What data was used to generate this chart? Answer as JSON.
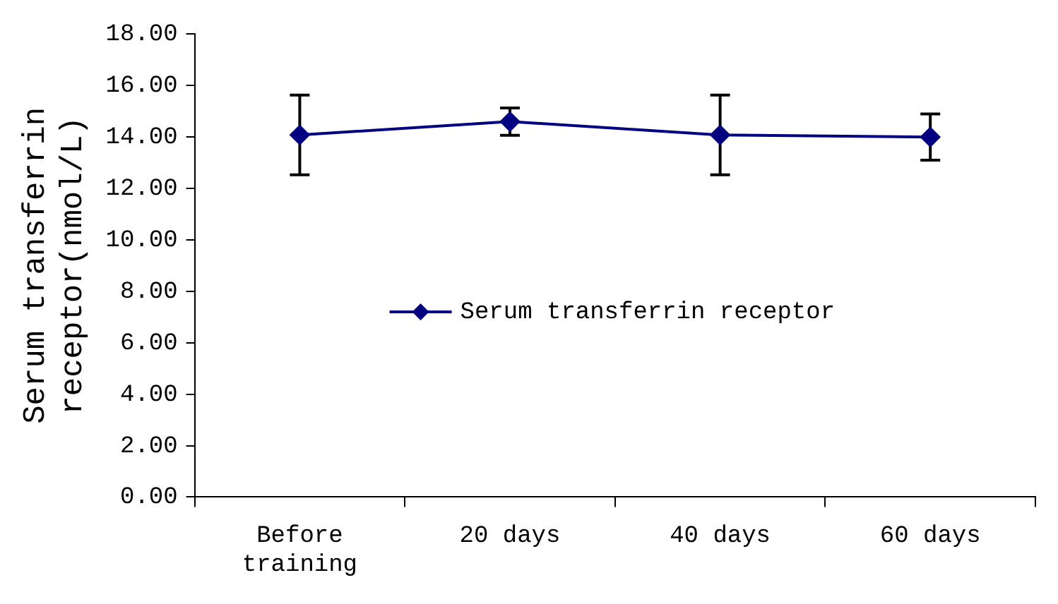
{
  "chart_data": {
    "type": "line",
    "ylabel": "Serum transferrin receptor(nmol/L)",
    "categories": [
      "Before training",
      "20 days",
      "40 days",
      "60 days"
    ],
    "series": [
      {
        "name": "Serum transferrin receptor",
        "color": "#000080",
        "values": [
          14.08,
          14.6,
          14.08,
          14.0
        ],
        "errors": [
          1.55,
          0.53,
          1.55,
          0.9
        ]
      }
    ],
    "ylim": [
      0,
      18
    ],
    "yticks": [
      {
        "value": 0,
        "label": "0.00"
      },
      {
        "value": 2,
        "label": "2.00"
      },
      {
        "value": 4,
        "label": "4.00"
      },
      {
        "value": 6,
        "label": "6.00"
      },
      {
        "value": 8,
        "label": "8.00"
      },
      {
        "value": 10,
        "label": "10.00"
      },
      {
        "value": 12,
        "label": "12.00"
      },
      {
        "value": 14,
        "label": "14.00"
      },
      {
        "value": 16,
        "label": "16.00"
      },
      {
        "value": 18,
        "label": "18.00"
      }
    ],
    "grid": false,
    "legend": "center",
    "marker": "diamond",
    "line_style": "solid"
  }
}
